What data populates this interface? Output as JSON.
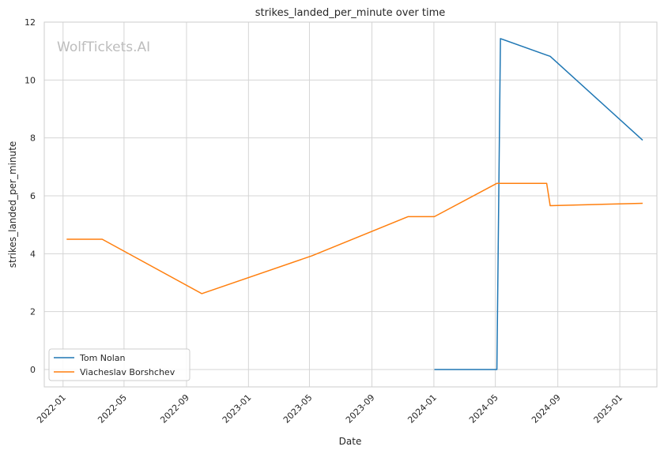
{
  "chart_data": {
    "type": "line",
    "title": "strikes_landed_per_minute over time",
    "xlabel": "Date",
    "ylabel": "strikes_landed_per_minute",
    "watermark": "WolfTickets.AI",
    "x_ticks": [
      "2022-01",
      "2022-05",
      "2022-09",
      "2023-01",
      "2023-05",
      "2023-09",
      "2024-01",
      "2024-05",
      "2024-09",
      "2025-01"
    ],
    "y_ticks": [
      "0",
      "2",
      "4",
      "6",
      "8",
      "10",
      "12"
    ],
    "ylim": [
      -0.6,
      12
    ],
    "xlim": [
      "2021-11-25",
      "2025-03-15"
    ],
    "grid": true,
    "legend_position": "lower-left",
    "series": [
      {
        "name": "Tom Nolan",
        "color": "#1f77b4",
        "points": [
          {
            "x": "2024-01-02",
            "y": 0.0
          },
          {
            "x": "2024-05-04",
            "y": 0.0
          },
          {
            "x": "2024-05-11",
            "y": 11.43
          },
          {
            "x": "2024-08-10",
            "y": 10.86
          },
          {
            "x": "2024-08-17",
            "y": 10.82
          },
          {
            "x": "2025-02-15",
            "y": 7.92
          }
        ]
      },
      {
        "name": "Viacheslav Borshchev",
        "color": "#ff7f0e",
        "points": [
          {
            "x": "2022-01-08",
            "y": 4.5
          },
          {
            "x": "2022-03-19",
            "y": 4.5
          },
          {
            "x": "2022-10-01",
            "y": 2.62
          },
          {
            "x": "2023-05-06",
            "y": 3.93
          },
          {
            "x": "2023-11-11",
            "y": 5.28
          },
          {
            "x": "2024-01-02",
            "y": 5.28
          },
          {
            "x": "2024-05-04",
            "y": 6.43
          },
          {
            "x": "2024-08-10",
            "y": 6.43
          },
          {
            "x": "2024-08-17",
            "y": 5.66
          },
          {
            "x": "2025-02-15",
            "y": 5.74
          }
        ]
      }
    ]
  }
}
